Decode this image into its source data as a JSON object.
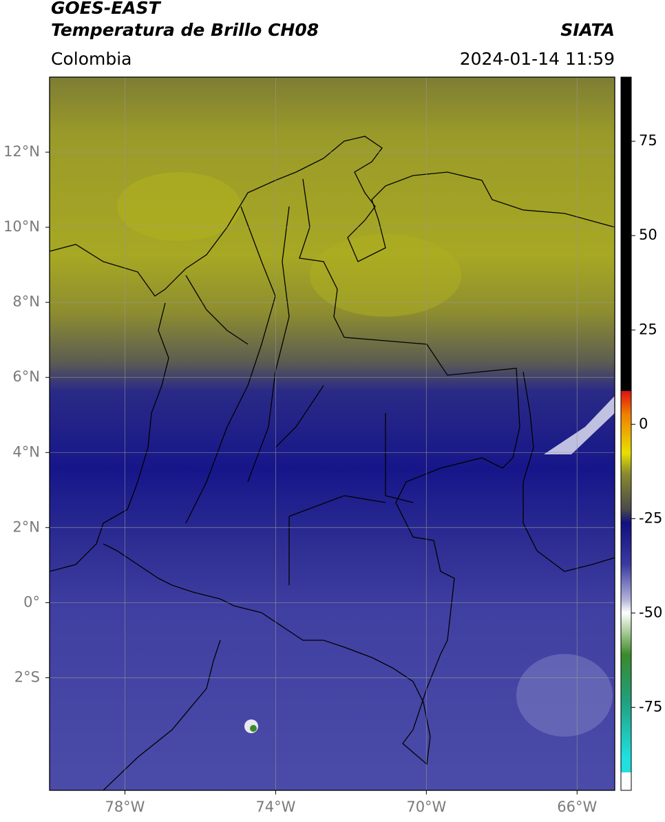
{
  "header": {
    "satellite": "GOES-EAST",
    "product": "Temperatura de Brillo CH08",
    "source": "SIATA",
    "region": "Colombia",
    "datetime": "2024-01-14 11:59"
  },
  "map": {
    "lon_range": [
      -80,
      -65
    ],
    "lat_range": [
      -5,
      14
    ],
    "lon_ticks": [
      {
        "value": -78,
        "label": "78°W"
      },
      {
        "value": -74,
        "label": "74°W"
      },
      {
        "value": -70,
        "label": "70°W"
      },
      {
        "value": -66,
        "label": "66°W"
      }
    ],
    "lat_ticks": [
      {
        "value": 12,
        "label": "12°N"
      },
      {
        "value": 10,
        "label": "10°N"
      },
      {
        "value": 8,
        "label": "8°N"
      },
      {
        "value": 6,
        "label": "6°N"
      },
      {
        "value": 4,
        "label": "4°N"
      },
      {
        "value": 2,
        "label": "2°N"
      },
      {
        "value": 0,
        "label": "0°"
      },
      {
        "value": -2,
        "label": "2°S"
      }
    ]
  },
  "colorbar": {
    "range": [
      -97,
      92
    ],
    "ticks": [
      75,
      50,
      25,
      0,
      -25,
      -50,
      -75
    ]
  }
}
